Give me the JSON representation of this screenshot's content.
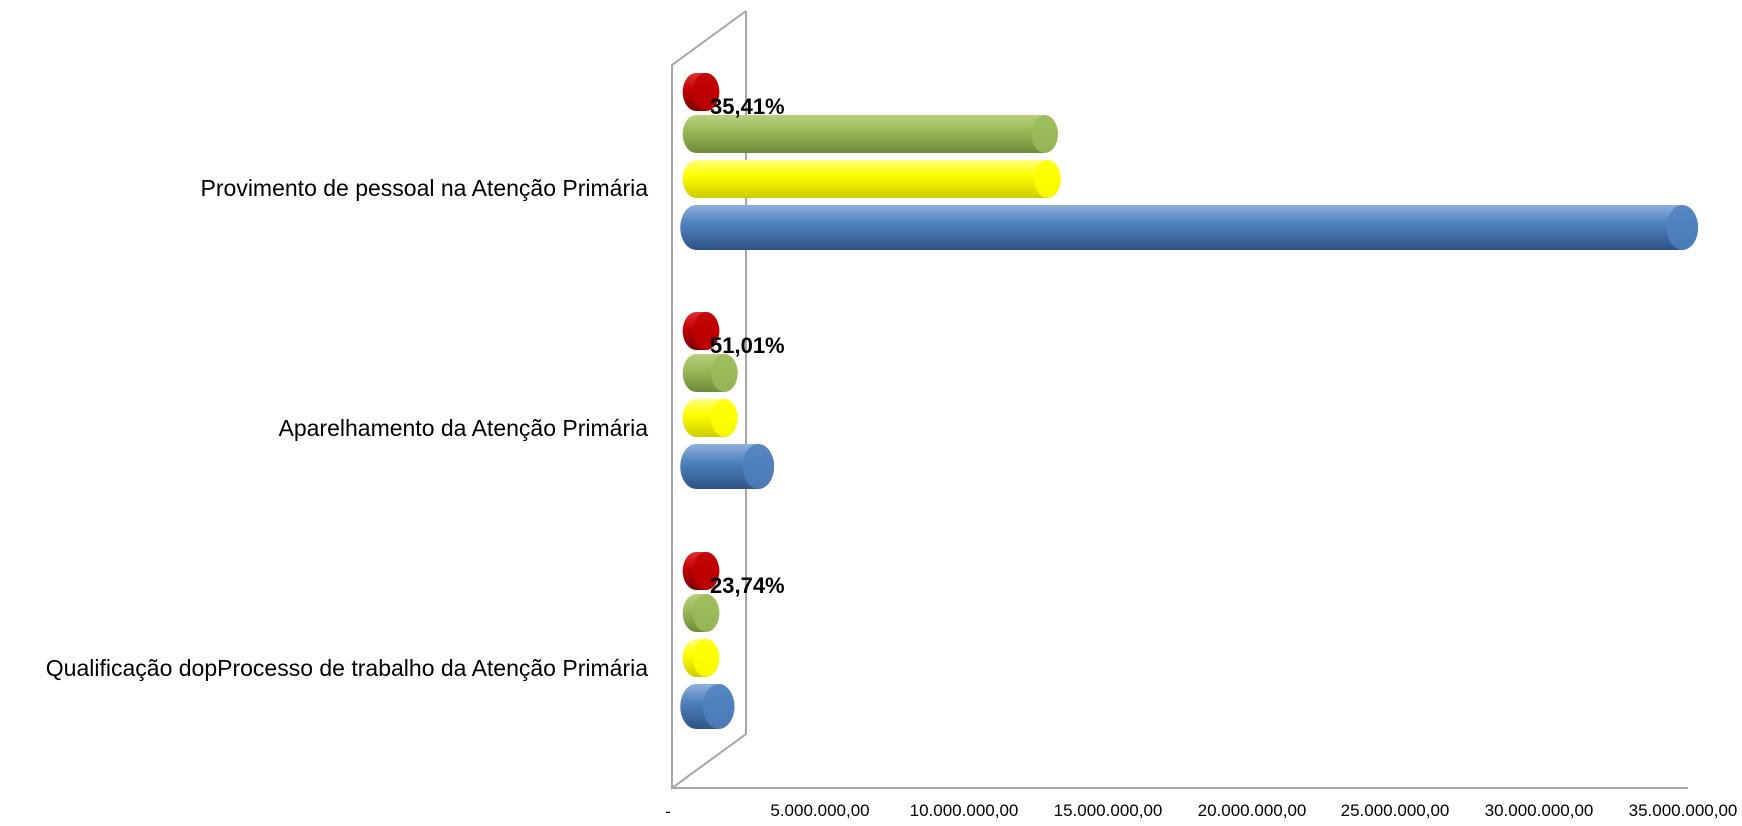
{
  "chart_data": {
    "type": "bar",
    "orientation": "horizontal",
    "style": "3d-cylinder",
    "categories": [
      "Provimento de pessoal na Atenção Primária",
      "Aparelhamento da Atenção Primária",
      "Qualificação dopProcesso de trabalho da Atenção Primária"
    ],
    "series": [
      {
        "color": "#c00000",
        "values": [
          0,
          0,
          0
        ]
      },
      {
        "color": "#9bbb59",
        "values": [
          12300000,
          1000000,
          0
        ]
      },
      {
        "color": "#ffff00",
        "values": [
          12400000,
          1000000,
          0
        ]
      },
      {
        "color": "#4f81bd",
        "values": [
          34800000,
          2200000,
          800000
        ]
      }
    ],
    "data_labels": [
      "35,41%",
      "51,01%",
      "23,74%"
    ],
    "x_ticks": [
      "-",
      "5.000.000,00",
      "10.000.000,00",
      "15.000.000,00",
      "20.000.000,00",
      "25.000.000,00",
      "30.000.000,00",
      "35.000.000,00"
    ],
    "xlim": [
      0,
      35000000
    ],
    "grid": false,
    "legend": "none"
  }
}
